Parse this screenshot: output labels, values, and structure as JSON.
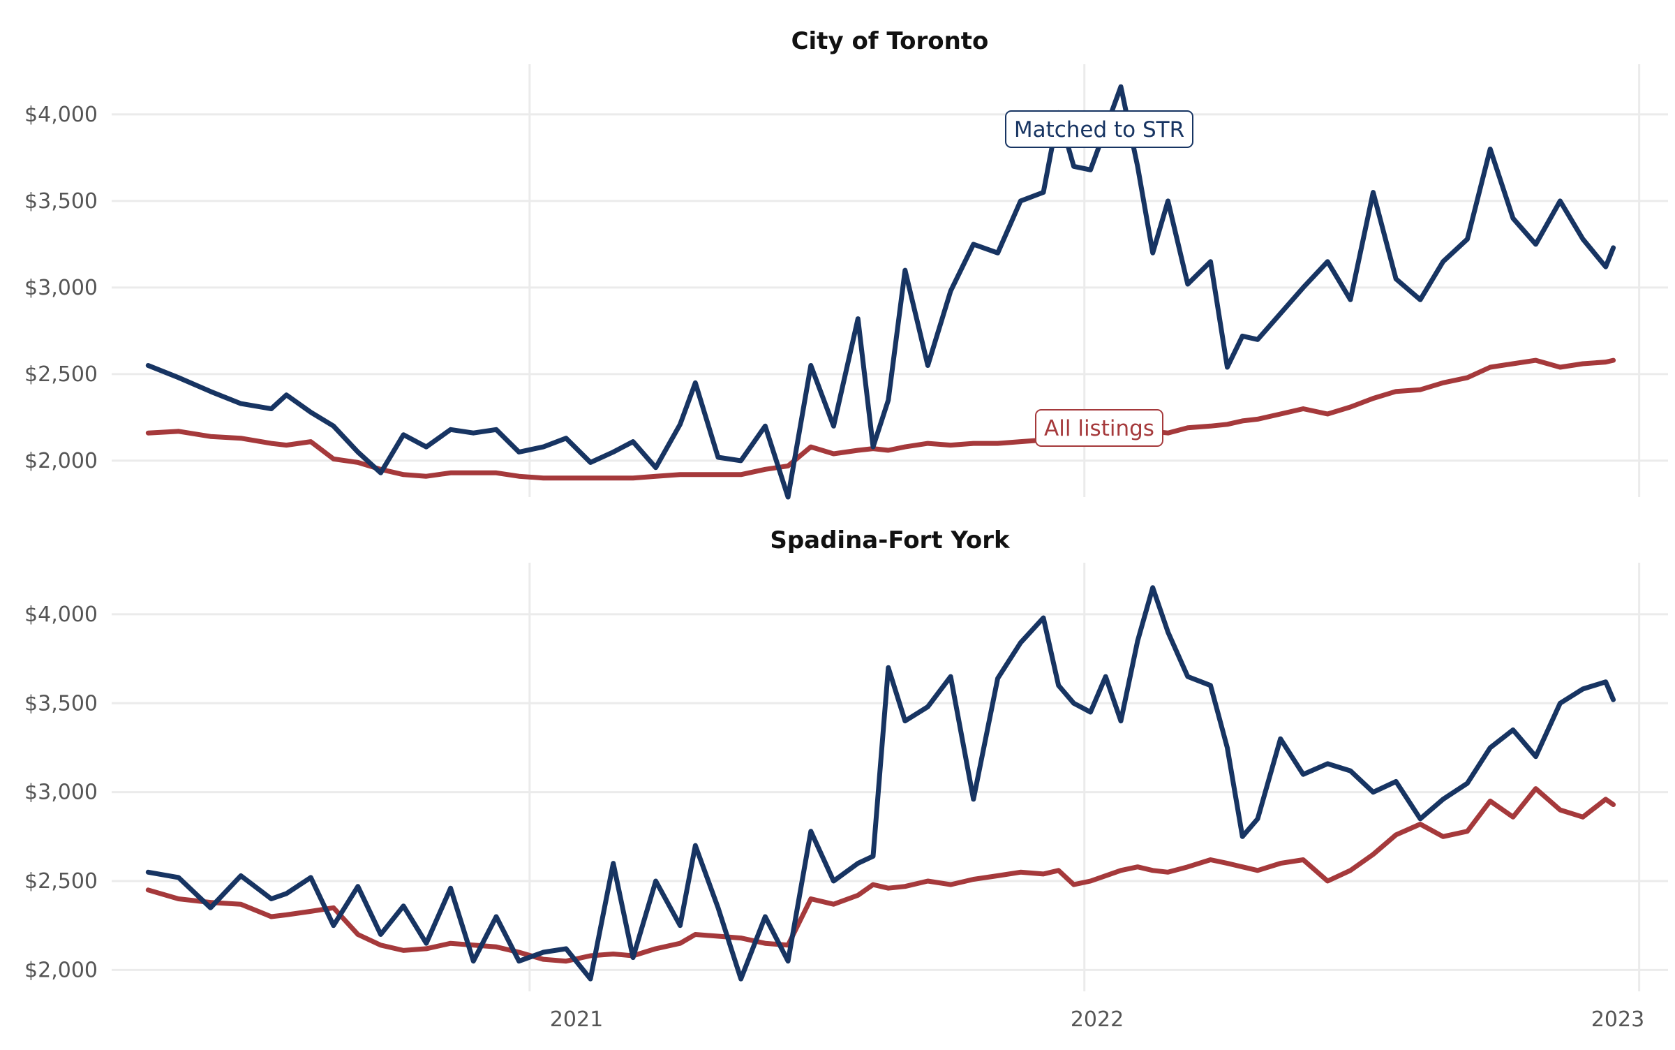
{
  "colors": {
    "matched": "#173462",
    "all": "#a5393b",
    "grid": "#ebebeb"
  },
  "annotations": {
    "matched_label": "Matched to STR",
    "all_label": "All listings"
  },
  "x_axis": {
    "ticks": [
      "2021",
      "2022",
      "2023"
    ]
  },
  "chart_data": [
    {
      "type": "line",
      "title": "City of Toronto",
      "xlabel": "",
      "ylabel": "",
      "xlim": [
        "2020-04-01",
        "2023-01-20"
      ],
      "ylim": [
        1790,
        4290
      ],
      "y_ticks": [
        2000,
        2500,
        3000,
        3500,
        4000
      ],
      "y_tick_labels": [
        "$2,000",
        "$2,500",
        "$3,000",
        "$3,500",
        "$4,000"
      ],
      "x_ticks": [
        "2021-01-01",
        "2022-01-01",
        "2023-01-01"
      ],
      "x_tick_labels": [
        "2021",
        "2022",
        "2023"
      ],
      "grid": true,
      "series": [
        {
          "name": "Matched to STR",
          "x": [
            "2020-04-25",
            "2020-05-15",
            "2020-06-05",
            "2020-06-25",
            "2020-07-15",
            "2020-07-25",
            "2020-08-10",
            "2020-08-25",
            "2020-09-10",
            "2020-09-25",
            "2020-10-10",
            "2020-10-25",
            "2020-11-10",
            "2020-11-25",
            "2020-12-10",
            "2020-12-25",
            "2021-01-10",
            "2021-01-25",
            "2021-02-10",
            "2021-02-25",
            "2021-03-10",
            "2021-03-25",
            "2021-04-10",
            "2021-04-20",
            "2021-05-05",
            "2021-05-20",
            "2021-06-05",
            "2021-06-20",
            "2021-07-05",
            "2021-07-20",
            "2021-08-05",
            "2021-08-15",
            "2021-08-25",
            "2021-09-05",
            "2021-09-20",
            "2021-10-05",
            "2021-10-20",
            "2021-11-05",
            "2021-11-20",
            "2021-12-05",
            "2021-12-15",
            "2021-12-25",
            "2022-01-05",
            "2022-01-15",
            "2022-01-25",
            "2022-02-05",
            "2022-02-15",
            "2022-02-25",
            "2022-03-10",
            "2022-03-25",
            "2022-04-05",
            "2022-04-15",
            "2022-04-25",
            "2022-05-10",
            "2022-05-25",
            "2022-06-10",
            "2022-06-25",
            "2022-07-10",
            "2022-07-25",
            "2022-08-10",
            "2022-08-25",
            "2022-09-10",
            "2022-09-25",
            "2022-10-10",
            "2022-10-25",
            "2022-11-10",
            "2022-11-25",
            "2022-12-10",
            "2022-12-15"
          ],
          "values": [
            2550,
            2480,
            2400,
            2330,
            2300,
            2380,
            2280,
            2200,
            2050,
            1930,
            2150,
            2080,
            2180,
            2160,
            2180,
            2050,
            2080,
            2130,
            1990,
            2050,
            2110,
            1960,
            2210,
            2450,
            2020,
            2000,
            2200,
            1790,
            2550,
            2200,
            2820,
            2080,
            2350,
            3100,
            2550,
            2980,
            3250,
            3200,
            3500,
            3550,
            4010,
            3700,
            3680,
            3920,
            4160,
            3700,
            3200,
            3500,
            3020,
            3150,
            2540,
            2720,
            2700,
            2850,
            3000,
            3150,
            2930,
            3550,
            3050,
            2930,
            3150,
            3280,
            3800,
            3400,
            3250,
            3500,
            3280,
            3120,
            3230
          ]
        },
        {
          "name": "All listings",
          "x": [
            "2020-04-25",
            "2020-05-15",
            "2020-06-05",
            "2020-06-25",
            "2020-07-15",
            "2020-07-25",
            "2020-08-10",
            "2020-08-25",
            "2020-09-10",
            "2020-09-25",
            "2020-10-10",
            "2020-10-25",
            "2020-11-10",
            "2020-11-25",
            "2020-12-10",
            "2020-12-25",
            "2021-01-10",
            "2021-01-25",
            "2021-02-10",
            "2021-02-25",
            "2021-03-10",
            "2021-03-25",
            "2021-04-10",
            "2021-04-20",
            "2021-05-05",
            "2021-05-20",
            "2021-06-05",
            "2021-06-20",
            "2021-07-05",
            "2021-07-20",
            "2021-08-05",
            "2021-08-15",
            "2021-08-25",
            "2021-09-05",
            "2021-09-20",
            "2021-10-05",
            "2021-10-20",
            "2021-11-05",
            "2021-11-20",
            "2021-12-05",
            "2021-12-15",
            "2021-12-25",
            "2022-01-05",
            "2022-01-15",
            "2022-01-25",
            "2022-02-05",
            "2022-02-15",
            "2022-02-25",
            "2022-03-10",
            "2022-03-25",
            "2022-04-05",
            "2022-04-15",
            "2022-04-25",
            "2022-05-10",
            "2022-05-25",
            "2022-06-10",
            "2022-06-25",
            "2022-07-10",
            "2022-07-25",
            "2022-08-10",
            "2022-08-25",
            "2022-09-10",
            "2022-09-25",
            "2022-10-10",
            "2022-10-25",
            "2022-11-10",
            "2022-11-25",
            "2022-12-10",
            "2022-12-15"
          ],
          "values": [
            2160,
            2170,
            2140,
            2130,
            2100,
            2090,
            2110,
            2010,
            1990,
            1950,
            1920,
            1910,
            1930,
            1930,
            1930,
            1910,
            1900,
            1900,
            1900,
            1900,
            1900,
            1910,
            1920,
            1920,
            1920,
            1920,
            1950,
            1970,
            2080,
            2040,
            2060,
            2070,
            2060,
            2080,
            2100,
            2090,
            2100,
            2100,
            2110,
            2120,
            2120,
            2120,
            2120,
            2160,
            2170,
            2180,
            2170,
            2160,
            2190,
            2200,
            2210,
            2230,
            2240,
            2270,
            2300,
            2270,
            2310,
            2360,
            2400,
            2410,
            2450,
            2480,
            2540,
            2560,
            2580,
            2540,
            2560,
            2570,
            2580
          ]
        }
      ]
    },
    {
      "type": "line",
      "title": "Spadina-Fort York",
      "xlabel": "",
      "ylabel": "",
      "xlim": [
        "2020-04-01",
        "2023-01-20"
      ],
      "ylim": [
        1880,
        4290
      ],
      "y_ticks": [
        2000,
        2500,
        3000,
        3500,
        4000
      ],
      "y_tick_labels": [
        "$2,000",
        "$2,500",
        "$3,000",
        "$3,500",
        "$4,000"
      ],
      "x_ticks": [
        "2021-01-01",
        "2022-01-01",
        "2023-01-01"
      ],
      "x_tick_labels": [
        "2021",
        "2022",
        "2023"
      ],
      "grid": true,
      "series": [
        {
          "name": "Matched to STR",
          "x": [
            "2020-04-25",
            "2020-05-15",
            "2020-06-05",
            "2020-06-25",
            "2020-07-15",
            "2020-07-25",
            "2020-08-10",
            "2020-08-25",
            "2020-09-10",
            "2020-09-25",
            "2020-10-10",
            "2020-10-25",
            "2020-11-10",
            "2020-11-25",
            "2020-12-10",
            "2020-12-25",
            "2021-01-10",
            "2021-01-25",
            "2021-02-10",
            "2021-02-25",
            "2021-03-10",
            "2021-03-25",
            "2021-04-10",
            "2021-04-20",
            "2021-05-05",
            "2021-05-20",
            "2021-06-05",
            "2021-06-20",
            "2021-07-05",
            "2021-07-20",
            "2021-08-05",
            "2021-08-15",
            "2021-08-25",
            "2021-09-05",
            "2021-09-20",
            "2021-10-05",
            "2021-10-20",
            "2021-11-05",
            "2021-11-20",
            "2021-12-05",
            "2021-12-15",
            "2021-12-25",
            "2022-01-05",
            "2022-01-15",
            "2022-01-25",
            "2022-02-05",
            "2022-02-15",
            "2022-02-25",
            "2022-03-10",
            "2022-03-25",
            "2022-04-05",
            "2022-04-15",
            "2022-04-25",
            "2022-05-10",
            "2022-05-25",
            "2022-06-10",
            "2022-06-25",
            "2022-07-10",
            "2022-07-25",
            "2022-08-10",
            "2022-08-25",
            "2022-09-10",
            "2022-09-25",
            "2022-10-10",
            "2022-10-25",
            "2022-11-10",
            "2022-11-25",
            "2022-12-10",
            "2022-12-15"
          ],
          "values": [
            2550,
            2520,
            2350,
            2530,
            2400,
            2430,
            2520,
            2250,
            2470,
            2200,
            2360,
            2150,
            2460,
            2050,
            2300,
            2050,
            2100,
            2120,
            1950,
            2600,
            2070,
            2500,
            2250,
            2700,
            2350,
            1950,
            2300,
            2050,
            2780,
            2500,
            2600,
            2640,
            3700,
            3400,
            3480,
            3650,
            2960,
            3640,
            3840,
            3980,
            3600,
            3500,
            3450,
            3650,
            3400,
            3850,
            4150,
            3900,
            3650,
            3600,
            3250,
            2750,
            2850,
            3300,
            3100,
            3160,
            3120,
            3000,
            3060,
            2850,
            2960,
            3050,
            3250,
            3350,
            3200,
            3500,
            3580,
            3620,
            3520
          ]
        },
        {
          "name": "All listings",
          "x": [
            "2020-04-25",
            "2020-05-15",
            "2020-06-05",
            "2020-06-25",
            "2020-07-15",
            "2020-07-25",
            "2020-08-10",
            "2020-08-25",
            "2020-09-10",
            "2020-09-25",
            "2020-10-10",
            "2020-10-25",
            "2020-11-10",
            "2020-11-25",
            "2020-12-10",
            "2020-12-25",
            "2021-01-10",
            "2021-01-25",
            "2021-02-10",
            "2021-02-25",
            "2021-03-10",
            "2021-03-25",
            "2021-04-10",
            "2021-04-20",
            "2021-05-05",
            "2021-05-20",
            "2021-06-05",
            "2021-06-20",
            "2021-07-05",
            "2021-07-20",
            "2021-08-05",
            "2021-08-15",
            "2021-08-25",
            "2021-09-05",
            "2021-09-20",
            "2021-10-05",
            "2021-10-20",
            "2021-11-05",
            "2021-11-20",
            "2021-12-05",
            "2021-12-15",
            "2021-12-25",
            "2022-01-05",
            "2022-01-15",
            "2022-01-25",
            "2022-02-05",
            "2022-02-15",
            "2022-02-25",
            "2022-03-10",
            "2022-03-25",
            "2022-04-05",
            "2022-04-15",
            "2022-04-25",
            "2022-05-10",
            "2022-05-25",
            "2022-06-10",
            "2022-06-25",
            "2022-07-10",
            "2022-07-25",
            "2022-08-10",
            "2022-08-25",
            "2022-09-10",
            "2022-09-25",
            "2022-10-10",
            "2022-10-25",
            "2022-11-10",
            "2022-11-25",
            "2022-12-10",
            "2022-12-15"
          ],
          "values": [
            2450,
            2400,
            2380,
            2370,
            2300,
            2310,
            2330,
            2350,
            2200,
            2140,
            2110,
            2120,
            2150,
            2140,
            2130,
            2100,
            2060,
            2050,
            2080,
            2090,
            2080,
            2120,
            2150,
            2200,
            2190,
            2180,
            2150,
            2140,
            2400,
            2370,
            2420,
            2480,
            2460,
            2470,
            2500,
            2480,
            2510,
            2530,
            2550,
            2540,
            2560,
            2480,
            2500,
            2530,
            2560,
            2580,
            2560,
            2550,
            2580,
            2620,
            2600,
            2580,
            2560,
            2600,
            2620,
            2500,
            2560,
            2650,
            2760,
            2820,
            2750,
            2780,
            2950,
            2860,
            3020,
            2900,
            2860,
            2960,
            2930
          ]
        }
      ]
    }
  ]
}
